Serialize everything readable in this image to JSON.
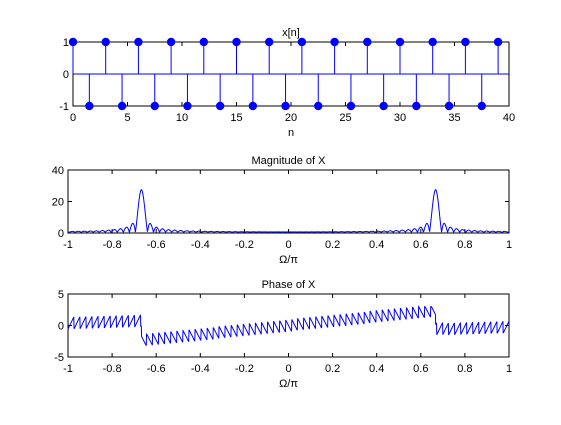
{
  "colors": {
    "series": "#0000ff",
    "axes": "#000000",
    "background": "#ffffff"
  },
  "chart_data": [
    {
      "type": "stem",
      "title": "x[n]",
      "xlabel": "n",
      "ylabel": "",
      "xlim": [
        0,
        40
      ],
      "ylim": [
        -1,
        1
      ],
      "xticks": [
        0,
        5,
        10,
        15,
        20,
        25,
        30,
        35,
        40
      ],
      "yticks": [
        -1,
        0,
        1
      ],
      "xtick_labels": [
        "0",
        "5",
        "10",
        "15",
        "20",
        "25",
        "30",
        "35",
        "40"
      ],
      "ytick_labels": [
        "-1",
        "0",
        "1"
      ],
      "grid": false,
      "x": [
        0,
        1.5,
        3,
        4.5,
        6,
        7.5,
        9,
        10.5,
        12,
        13.5,
        15,
        16.5,
        18,
        19.5,
        21,
        22.5,
        24,
        25.5,
        27,
        28.5,
        30,
        31.5,
        33,
        34.5,
        36,
        37.5,
        39
      ],
      "y": [
        1,
        -1,
        1,
        -1,
        1,
        -1,
        1,
        -1,
        1,
        -1,
        1,
        -1,
        1,
        -1,
        1,
        -1,
        1,
        -1,
        1,
        -1,
        1,
        -1,
        1,
        -1,
        1,
        -1,
        1
      ]
    },
    {
      "type": "line",
      "title": "Magnitude of X",
      "xlabel": "Ω/π",
      "ylabel": "",
      "xlim": [
        -1,
        1
      ],
      "ylim": [
        0,
        40
      ],
      "xticks": [
        -1,
        -0.8,
        -0.6,
        -0.4,
        -0.2,
        0,
        0.2,
        0.4,
        0.6,
        0.8,
        1
      ],
      "yticks": [
        0,
        20,
        40
      ],
      "xtick_labels": [
        "-1",
        "-0.8",
        "-0.6",
        "-0.4",
        "-0.2",
        "0",
        "0.2",
        "0.4",
        "0.6",
        "0.8",
        "1"
      ],
      "ytick_labels": [
        "0",
        "20",
        "40"
      ],
      "grid": false,
      "model": {
        "peak_frequencies": [
          -0.667,
          0.667
        ],
        "peak_value": 27,
        "lobe_period": 0.0274
      }
    },
    {
      "type": "line",
      "title": "Phase of X",
      "xlabel": "Ω/π",
      "ylabel": "",
      "xlim": [
        -1,
        1
      ],
      "ylim": [
        -5,
        5
      ],
      "xticks": [
        -1,
        -0.8,
        -0.6,
        -0.4,
        -0.2,
        0,
        0.2,
        0.4,
        0.6,
        0.8,
        1
      ],
      "yticks": [
        -5,
        0,
        5
      ],
      "xtick_labels": [
        "-1",
        "-0.8",
        "-0.6",
        "-0.4",
        "-0.2",
        "0",
        "0.2",
        "0.4",
        "0.6",
        "0.8",
        "1"
      ],
      "ytick_labels": [
        "-5",
        "0",
        "5"
      ],
      "grid": false,
      "model": {
        "sawtooth_period": 0.0274,
        "sawtooth_amplitude": 1.8,
        "ramp_breakpoints": [
          -0.667,
          0.667
        ],
        "ramp_extreme": 2.8
      }
    }
  ]
}
